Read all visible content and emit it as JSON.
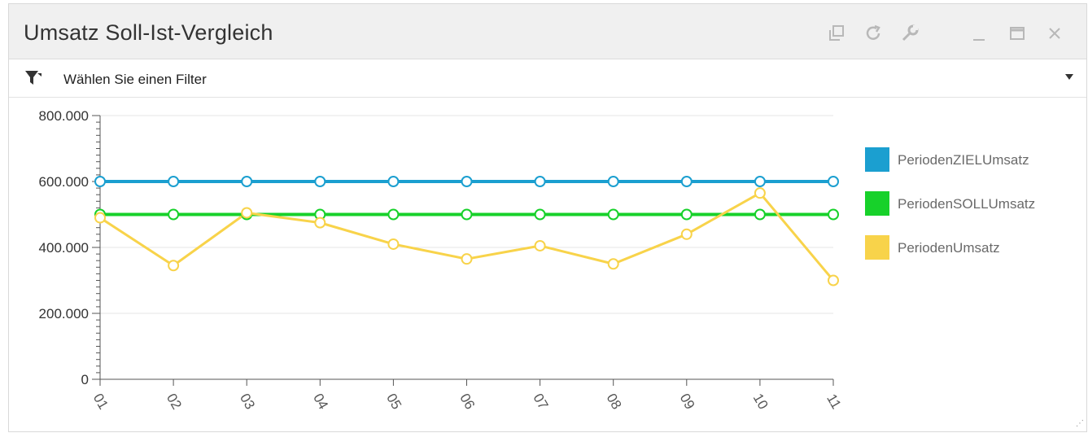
{
  "window": {
    "title": "Umsatz Soll-Ist-Vergleich",
    "icons": [
      "copy-icon",
      "refresh-icon",
      "wrench-icon",
      "minimize-icon",
      "maximize-icon",
      "close-icon"
    ]
  },
  "filter": {
    "label": "Wählen Sie einen Filter",
    "icon": "funnel-icon"
  },
  "colors": {
    "ziel": "#1b9fd0",
    "soll": "#17d12a",
    "umsatz": "#f8d34a"
  },
  "chart_data": {
    "type": "line",
    "categories": [
      "01",
      "02",
      "03",
      "04",
      "05",
      "06",
      "07",
      "08",
      "09",
      "10",
      "11"
    ],
    "series": [
      {
        "name": "PeriodenZIELUmsatz",
        "values": [
          600000,
          600000,
          600000,
          600000,
          600000,
          600000,
          600000,
          600000,
          600000,
          600000,
          600000
        ]
      },
      {
        "name": "PeriodenSOLLUmsatz",
        "values": [
          500000,
          500000,
          500000,
          500000,
          500000,
          500000,
          500000,
          500000,
          500000,
          500000,
          500000
        ]
      },
      {
        "name": "PeriodenUmsatz",
        "values": [
          490000,
          345000,
          505000,
          475000,
          410000,
          365000,
          405000,
          350000,
          440000,
          565000,
          300000
        ]
      }
    ],
    "yticks": [
      "0",
      "200.000",
      "400.000",
      "600.000",
      "800.000"
    ],
    "ylim": [
      0,
      800000
    ],
    "grid": true,
    "legend_position": "right"
  }
}
